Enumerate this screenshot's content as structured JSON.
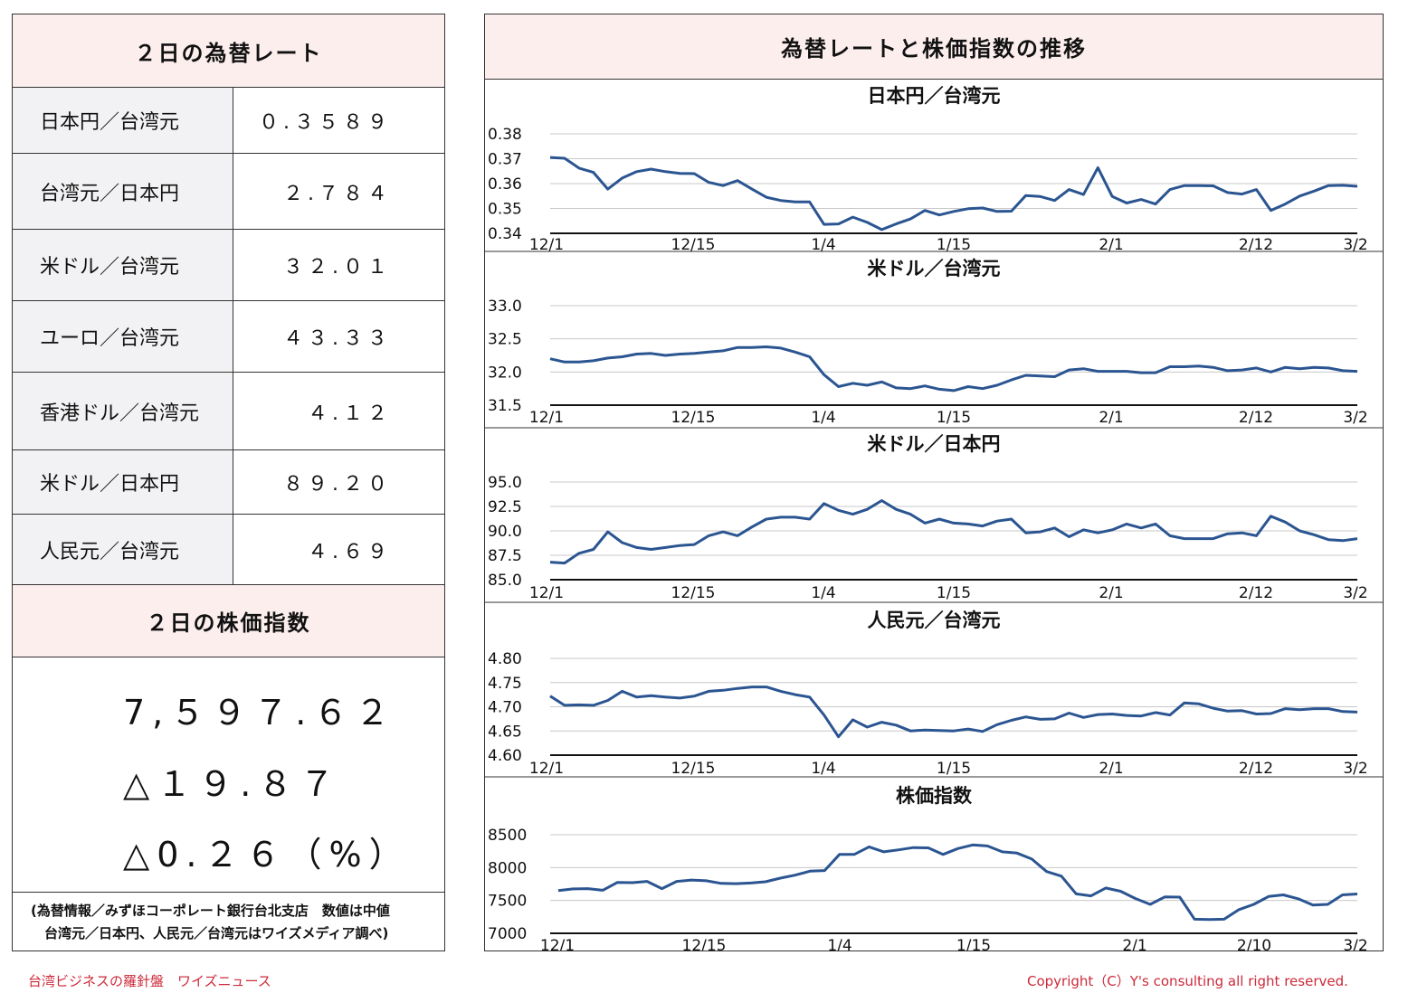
{
  "rates_panel": {
    "title": "２日の為替レート",
    "rows": [
      {
        "label": "日本円／台湾元",
        "value": "０.３５８９"
      },
      {
        "label": "台湾元／日本円",
        "value": "２.７８４"
      },
      {
        "label": "米ドル／台湾元",
        "value": "３２.０１"
      },
      {
        "label": "ユーロ／台湾元",
        "value": "４３.３３"
      },
      {
        "label": "香港ドル／台湾元",
        "value": "４.１２"
      },
      {
        "label": "米ドル／日本円",
        "value": "８９.２０"
      },
      {
        "label": "人民元／台湾元",
        "value": "４.６９"
      }
    ]
  },
  "index_panel": {
    "title": "２日の株価指数",
    "value": "7,５９７.６２",
    "change": "△１９.８７",
    "change_pct": "△0.２６（%）"
  },
  "source_note": {
    "line1": "(為替情報／みずほコーポレート銀行台北支店　数値は中値",
    "line2": "　台湾元／日本円、人民元／台湾元はワイズメディア調べ)"
  },
  "footer": {
    "left": "台湾ビジネスの羅針盤　ワイズニュース",
    "right": "Copyright（C）Y's consulting all right reserved."
  },
  "colors": {
    "line": "#2b5591",
    "header_bg": "#fdeeee",
    "label_bg": "#f2f2f4",
    "footer_text": "#cc2a3a"
  },
  "charts_panel": {
    "title": "為替レートと株価指数の推移"
  },
  "chart_data": [
    {
      "type": "line",
      "title": "日本円／台湾元",
      "ylim": [
        0.34,
        0.38
      ],
      "yticks": [
        "0.38",
        "0.37",
        "0.36",
        "0.35",
        "0.34"
      ],
      "xticks": [
        "12/1",
        "12/15",
        "1/4",
        "1/15",
        "2/1",
        "2/12",
        "3/2"
      ],
      "values": [
        0.3705,
        0.3702,
        0.3662,
        0.3645,
        0.3578,
        0.3622,
        0.3648,
        0.3658,
        0.3648,
        0.3641,
        0.364,
        0.3605,
        0.3592,
        0.3612,
        0.3578,
        0.3545,
        0.3532,
        0.3526,
        0.3526,
        0.3436,
        0.3438,
        0.3465,
        0.3444,
        0.3415,
        0.3438,
        0.3458,
        0.3492,
        0.3474,
        0.3488,
        0.3499,
        0.3502,
        0.3488,
        0.3489,
        0.3552,
        0.3548,
        0.3532,
        0.3576,
        0.3556,
        0.3664,
        0.3548,
        0.3522,
        0.3536,
        0.3518,
        0.3576,
        0.3592,
        0.3592,
        0.3591,
        0.3564,
        0.3558,
        0.3576,
        0.3492,
        0.3518,
        0.355,
        0.357,
        0.3592,
        0.3593,
        0.3589
      ]
    },
    {
      "type": "line",
      "title": "米ドル／台湾元",
      "ylim": [
        31.5,
        33.0
      ],
      "yticks": [
        "33.0",
        "32.5",
        "32.0",
        "31.5"
      ],
      "xticks": [
        "12/1",
        "12/15",
        "1/4",
        "1/15",
        "2/1",
        "2/12",
        "3/2"
      ],
      "values": [
        32.2,
        32.15,
        32.15,
        32.17,
        32.21,
        32.23,
        32.27,
        32.28,
        32.25,
        32.27,
        32.28,
        32.3,
        32.32,
        32.37,
        32.37,
        32.38,
        32.36,
        32.3,
        32.23,
        31.96,
        31.78,
        31.83,
        31.8,
        31.85,
        31.76,
        31.75,
        31.79,
        31.74,
        31.72,
        31.78,
        31.75,
        31.8,
        31.88,
        31.95,
        31.94,
        31.93,
        32.03,
        32.05,
        32.01,
        32.01,
        32.01,
        31.99,
        31.99,
        32.08,
        32.08,
        32.09,
        32.07,
        32.02,
        32.03,
        32.06,
        32.0,
        32.07,
        32.05,
        32.07,
        32.06,
        32.02,
        32.01
      ]
    },
    {
      "type": "line",
      "title": "米ドル／日本円",
      "ylim": [
        85.0,
        95.0
      ],
      "yticks": [
        "95.0",
        "92.5",
        "90.0",
        "87.5",
        "85.0"
      ],
      "xticks": [
        "12/1",
        "12/15",
        "1/4",
        "1/15",
        "2/1",
        "2/12",
        "3/2"
      ],
      "values": [
        86.8,
        86.7,
        87.7,
        88.1,
        89.9,
        88.8,
        88.3,
        88.1,
        88.3,
        88.5,
        88.6,
        89.5,
        89.9,
        89.5,
        90.4,
        91.2,
        91.4,
        91.4,
        91.2,
        92.8,
        92.1,
        91.7,
        92.2,
        93.1,
        92.2,
        91.7,
        90.8,
        91.2,
        90.8,
        90.7,
        90.5,
        91.0,
        91.2,
        89.8,
        89.9,
        90.3,
        89.4,
        90.1,
        89.8,
        90.1,
        90.7,
        90.3,
        90.7,
        89.5,
        89.2,
        89.2,
        89.2,
        89.7,
        89.8,
        89.5,
        91.5,
        90.9,
        90.0,
        89.6,
        89.1,
        89.0,
        89.2
      ]
    },
    {
      "type": "line",
      "title": "人民元／台湾元",
      "ylim": [
        4.6,
        4.8
      ],
      "yticks": [
        "4.80",
        "4.75",
        "4.70",
        "4.65",
        "4.60"
      ],
      "xticks": [
        "12/1",
        "12/15",
        "1/4",
        "1/15",
        "2/1",
        "2/12",
        "3/2"
      ],
      "values": [
        4.722,
        4.703,
        4.704,
        4.703,
        4.713,
        4.732,
        4.72,
        4.723,
        4.72,
        4.718,
        4.722,
        4.732,
        4.734,
        4.738,
        4.741,
        4.741,
        4.732,
        4.725,
        4.72,
        4.683,
        4.638,
        4.673,
        4.658,
        4.668,
        4.662,
        4.65,
        4.652,
        4.651,
        4.65,
        4.654,
        4.649,
        4.663,
        4.672,
        4.679,
        4.674,
        4.675,
        4.687,
        4.678,
        4.684,
        4.685,
        4.682,
        4.681,
        4.688,
        4.683,
        4.708,
        4.706,
        4.697,
        4.691,
        4.692,
        4.685,
        4.686,
        4.696,
        4.694,
        4.696,
        4.696,
        4.69,
        4.689
      ]
    },
    {
      "type": "line",
      "title": "株価指数",
      "ylim": [
        7000,
        8500
      ],
      "yticks": [
        "8500",
        "8000",
        "7500",
        "7000"
      ],
      "xticks": [
        "12/1",
        "12/15",
        "1/4",
        "1/15",
        "2/1",
        "2/10",
        "3/2"
      ],
      "values": [
        7650,
        7675,
        7680,
        7655,
        7775,
        7770,
        7790,
        7680,
        7790,
        7810,
        7800,
        7760,
        7755,
        7765,
        7785,
        7840,
        7885,
        7945,
        7955,
        8200,
        8200,
        8315,
        8240,
        8270,
        8305,
        8300,
        8200,
        8290,
        8345,
        8330,
        8240,
        8220,
        8130,
        7940,
        7870,
        7600,
        7570,
        7690,
        7640,
        7530,
        7440,
        7555,
        7550,
        7215,
        7210,
        7215,
        7360,
        7440,
        7560,
        7585,
        7525,
        7430,
        7440,
        7585,
        7598
      ]
    }
  ]
}
